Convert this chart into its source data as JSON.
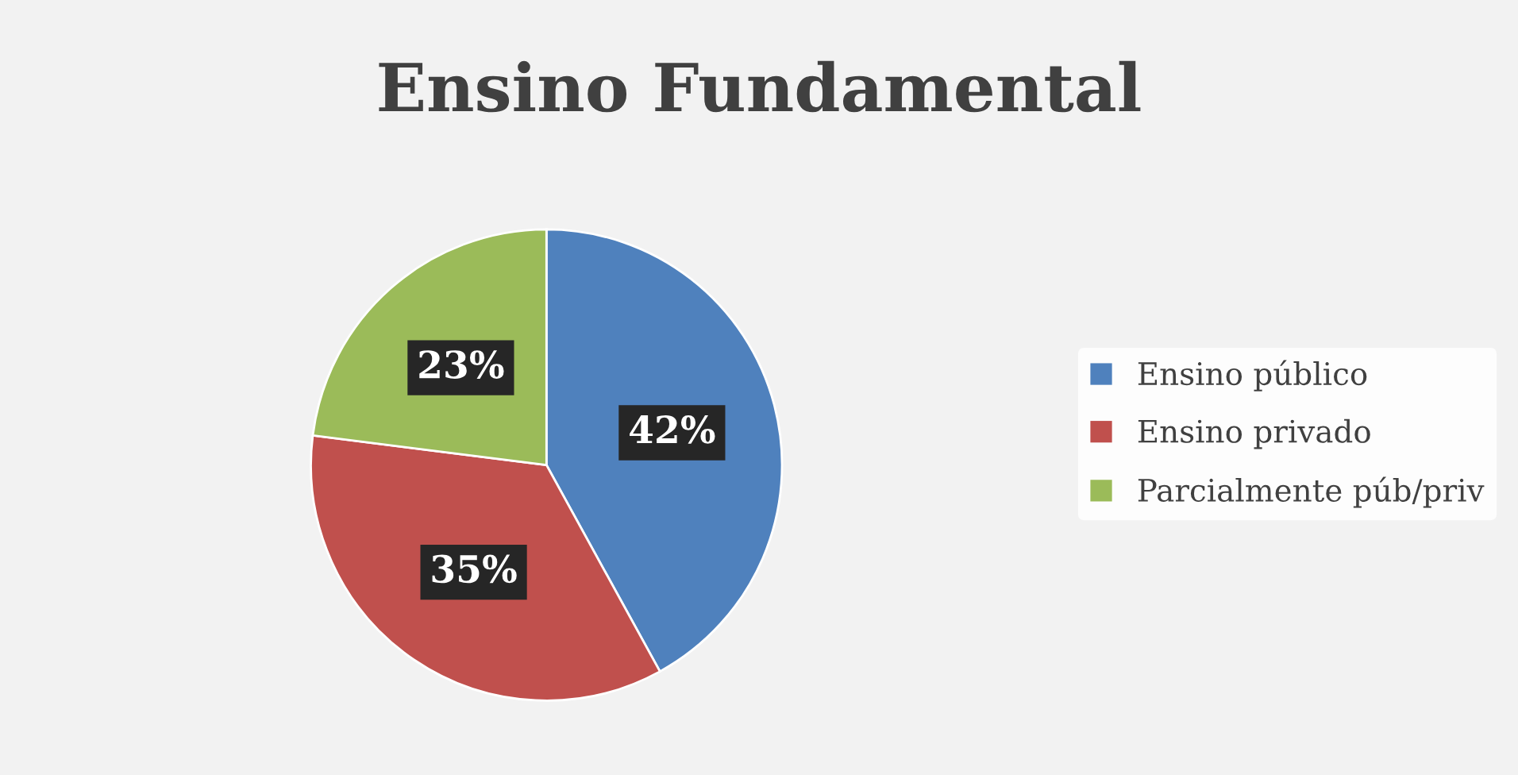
{
  "chart_data": {
    "type": "pie",
    "title": "Ensino Fundamental",
    "categories": [
      "Ensino público",
      "Ensino privado",
      "Parcialmente púb/priv"
    ],
    "values": [
      42,
      35,
      23
    ],
    "colors": [
      "#4f81bd",
      "#c0504d",
      "#9bbb59"
    ],
    "value_labels": [
      "42%",
      "35%",
      "23%"
    ],
    "legend": "right"
  }
}
